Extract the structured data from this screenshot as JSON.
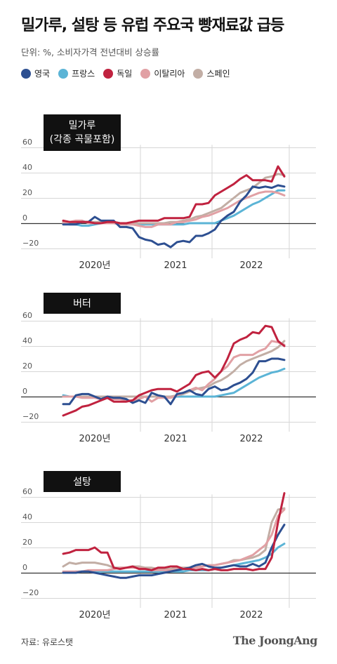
{
  "header": {
    "title": "밀가루, 설탕 등 유럽 주요국 빵재료값 급등",
    "subtitle": "단위: %, 소비자가격 전년대비 상승률"
  },
  "legend": [
    {
      "name": "영국",
      "color": "#2d4f91"
    },
    {
      "name": "프랑스",
      "color": "#5bb4d6"
    },
    {
      "name": "독일",
      "color": "#c0223f"
    },
    {
      "name": "이탈리아",
      "color": "#e1a0a4"
    },
    {
      "name": "스페인",
      "color": "#c2aea5"
    }
  ],
  "footer": {
    "source": "자료: 유로스탯",
    "brand": "The JoongAng"
  },
  "chart_data": [
    {
      "type": "line",
      "label": "밀가루\n(각종 곡물포함)",
      "x_tick_labels": [
        "2020년",
        "2021",
        "2022"
      ],
      "y_ticks": [
        60,
        40,
        20,
        0,
        -20
      ],
      "ylim": [
        -20,
        60
      ],
      "x_period": "2019-10 to 2022-09, monthly",
      "series": [
        {
          "name": "영국",
          "values": [
            -1,
            -1,
            -1,
            1,
            1,
            5,
            2,
            2,
            2,
            -3,
            -3,
            -4,
            -11,
            -13,
            -14,
            -17,
            -16,
            -19,
            -15,
            -14,
            -15,
            -10,
            -10,
            -8,
            -5,
            2,
            6,
            9,
            17,
            22,
            29,
            28,
            29,
            28,
            30,
            29
          ]
        },
        {
          "name": "프랑스",
          "values": [
            0,
            -1,
            -1,
            -2,
            -2,
            -1,
            0,
            1,
            1,
            0,
            -1,
            -1,
            -1,
            -1,
            -1,
            -1,
            -1,
            -1,
            -1,
            -1,
            0,
            0,
            0,
            0,
            0,
            2,
            4,
            6,
            9,
            12,
            15,
            17,
            20,
            23,
            26,
            26
          ]
        },
        {
          "name": "독일",
          "values": [
            2,
            1,
            1,
            1,
            1,
            0,
            0,
            1,
            1,
            0,
            0,
            1,
            2,
            2,
            2,
            2,
            4,
            4,
            4,
            4,
            5,
            15,
            15,
            16,
            22,
            25,
            28,
            31,
            35,
            38,
            34,
            34,
            34,
            33,
            45,
            37
          ]
        },
        {
          "name": "이탈리아",
          "values": [
            0,
            1,
            2,
            2,
            0,
            0,
            0,
            0,
            0,
            -1,
            -1,
            -1,
            -2,
            -3,
            -3,
            -1,
            -1,
            -1,
            1,
            1,
            2,
            3,
            5,
            6,
            8,
            10,
            12,
            15,
            18,
            20,
            22,
            24,
            25,
            25,
            24,
            22
          ]
        },
        {
          "name": "스페인",
          "values": [
            1,
            1,
            1,
            1,
            1,
            1,
            1,
            1,
            1,
            0,
            0,
            0,
            0,
            0,
            0,
            0,
            0,
            1,
            1,
            2,
            3,
            5,
            6,
            8,
            10,
            12,
            16,
            20,
            24,
            26,
            28,
            32,
            36,
            37,
            39,
            38
          ]
        }
      ]
    },
    {
      "type": "line",
      "label": "버터",
      "x_tick_labels": [
        "2020년",
        "2021",
        "2022"
      ],
      "y_ticks": [
        60,
        40,
        20,
        0,
        -20
      ],
      "ylim": [
        -20,
        60
      ],
      "x_period": "2019-10 to 2022-09, monthly",
      "series": [
        {
          "name": "영국",
          "values": [
            -6,
            -6,
            1,
            2,
            2,
            0,
            -2,
            0,
            -1,
            -1,
            -2,
            -5,
            -3,
            -5,
            3,
            1,
            0,
            -6,
            2,
            3,
            5,
            2,
            1,
            6,
            8,
            5,
            6,
            9,
            11,
            14,
            19,
            28,
            28,
            30,
            30,
            29
          ]
        },
        {
          "name": "프랑스",
          "values": [
            1,
            0,
            0,
            0,
            0,
            0,
            0,
            0,
            0,
            0,
            0,
            0,
            0,
            0,
            0,
            0,
            0,
            0,
            0,
            0,
            0,
            0,
            0,
            0,
            0,
            1,
            2,
            3,
            6,
            9,
            12,
            15,
            17,
            19,
            20,
            22
          ]
        },
        {
          "name": "독일",
          "values": [
            -15,
            -13,
            -11,
            -8,
            -7,
            -5,
            -3,
            -1,
            -4,
            -4,
            -4,
            -3,
            1,
            3,
            5,
            6,
            6,
            6,
            4,
            7,
            10,
            17,
            19,
            20,
            15,
            20,
            30,
            42,
            45,
            47,
            51,
            50,
            56,
            55,
            44,
            40
          ]
        },
        {
          "name": "이탈리아",
          "values": [
            0,
            0,
            0,
            -1,
            -1,
            -1,
            -2,
            -1,
            -2,
            -2,
            -3,
            -3,
            -2,
            0,
            -4,
            -1,
            -1,
            -1,
            1,
            3,
            5,
            7,
            5,
            10,
            14,
            20,
            24,
            31,
            33,
            33,
            33,
            36,
            38,
            44,
            43,
            41
          ]
        },
        {
          "name": "스페인",
          "values": [
            0,
            0,
            0,
            0,
            0,
            0,
            0,
            0,
            0,
            0,
            0,
            0,
            0,
            0,
            0,
            0,
            0,
            0,
            1,
            2,
            4,
            6,
            7,
            8,
            11,
            13,
            16,
            20,
            25,
            28,
            30,
            32,
            34,
            36,
            39,
            44
          ]
        }
      ]
    },
    {
      "type": "line",
      "label": "설탕",
      "x_tick_labels": [
        "2020년",
        "2021",
        "2022"
      ],
      "y_ticks": [
        60,
        40,
        20,
        0,
        -20
      ],
      "ylim": [
        -20,
        60
      ],
      "x_period": "2019-10 to 2022-09, monthly",
      "series": [
        {
          "name": "영국",
          "values": [
            0,
            0,
            0,
            1,
            1,
            0,
            -1,
            -2,
            -3,
            -4,
            -4,
            -3,
            -2,
            -2,
            -2,
            -1,
            0,
            1,
            2,
            3,
            4,
            6,
            7,
            5,
            4,
            4,
            5,
            6,
            5,
            5,
            7,
            5,
            8,
            20,
            30,
            38
          ]
        },
        {
          "name": "프랑스",
          "values": [
            0,
            0,
            1,
            1,
            1,
            1,
            1,
            1,
            1,
            1,
            1,
            1,
            1,
            1,
            1,
            1,
            1,
            1,
            1,
            1,
            2,
            2,
            2,
            2,
            3,
            4,
            5,
            6,
            7,
            8,
            9,
            10,
            12,
            15,
            20,
            23
          ]
        },
        {
          "name": "독일",
          "values": [
            15,
            16,
            18,
            18,
            18,
            20,
            16,
            16,
            4,
            3,
            4,
            5,
            3,
            3,
            2,
            4,
            4,
            5,
            5,
            3,
            3,
            2,
            3,
            2,
            3,
            2,
            2,
            3,
            3,
            3,
            2,
            3,
            3,
            12,
            40,
            63
          ]
        },
        {
          "name": "이탈리아",
          "values": [
            1,
            1,
            1,
            1,
            2,
            2,
            2,
            2,
            3,
            4,
            4,
            4,
            4,
            3,
            2,
            2,
            2,
            2,
            3,
            3,
            4,
            4,
            5,
            6,
            6,
            7,
            8,
            9,
            10,
            12,
            14,
            18,
            22,
            30,
            45,
            50
          ]
        },
        {
          "name": "스페인",
          "values": [
            5,
            8,
            7,
            8,
            8,
            8,
            7,
            6,
            4,
            4,
            4,
            5,
            5,
            4,
            4,
            3,
            3,
            3,
            4,
            4,
            4,
            5,
            5,
            6,
            6,
            7,
            8,
            10,
            10,
            11,
            12,
            14,
            18,
            40,
            50,
            51
          ]
        }
      ]
    }
  ]
}
